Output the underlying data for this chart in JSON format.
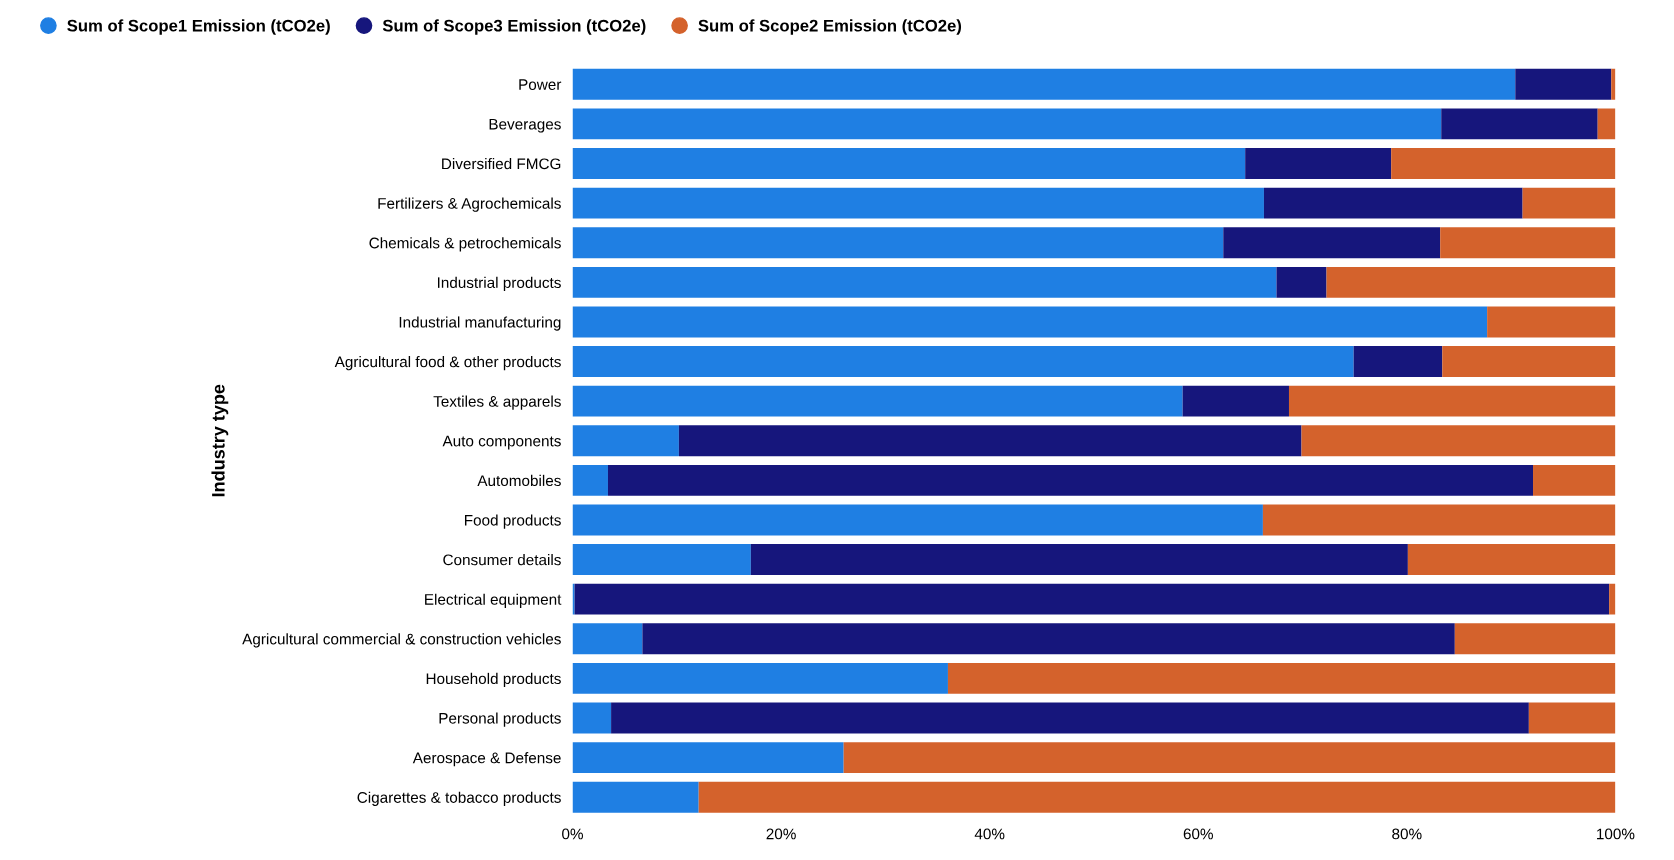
{
  "chart_data": {
    "type": "bar",
    "orientation": "horizontal",
    "stacked": true,
    "ylabel": "Industry type",
    "legend": "top left",
    "grid": false,
    "categories": [
      "Power",
      "Beverages",
      "Diversified FMCG",
      "Fertilizers & Agrochemicals",
      "Chemicals & petrochemicals",
      "Industrial products",
      "Industrial manufacturing",
      "Agricultural food & other products",
      "Textiles & apparels",
      "Auto components",
      "Automobiles",
      "Food products",
      "Consumer details",
      "Electrical equipment",
      "Agricultural commercial & construction vehicles",
      "Household products",
      "Personal products",
      "Aerospace & Defense",
      "Cigarettes & tobacco products"
    ],
    "series": [
      {
        "name": "Sum of Scope1 Emission (tCO2e)",
        "color": "#1f7fe3",
        "values": [
          90.4,
          83.3,
          64.5,
          66.3,
          62.4,
          67.5,
          87.7,
          74.9,
          58.5,
          10.2,
          3.4,
          66.2,
          17.1,
          0.2,
          6.7,
          36.0,
          3.7,
          26.0,
          12.1
        ]
      },
      {
        "name": "Sum of Scope3 Emission (tCO2e)",
        "color": "#16167c",
        "values": [
          9.2,
          15.0,
          14.0,
          24.8,
          20.8,
          4.8,
          0,
          8.5,
          10.2,
          59.7,
          88.7,
          0,
          63.0,
          99.2,
          77.9,
          0,
          88.0,
          0,
          0
        ]
      },
      {
        "name": "Sum of Scope2 Emission (tCO2e)",
        "color": "#d4622c",
        "values": [
          0.4,
          1.7,
          21.5,
          8.9,
          16.8,
          27.7,
          12.3,
          16.6,
          31.3,
          30.1,
          7.9,
          33.8,
          19.9,
          0.6,
          15.4,
          64.0,
          8.3,
          74.0,
          87.9
        ]
      }
    ],
    "xlim": [
      0,
      100
    ],
    "xticks": [
      {
        "value": 0,
        "label": "0%"
      },
      {
        "value": 20,
        "label": "20%"
      },
      {
        "value": 40,
        "label": "40%"
      },
      {
        "value": 60,
        "label": "60%"
      },
      {
        "value": 80,
        "label": "80%"
      },
      {
        "value": 100,
        "label": "100%"
      }
    ]
  }
}
